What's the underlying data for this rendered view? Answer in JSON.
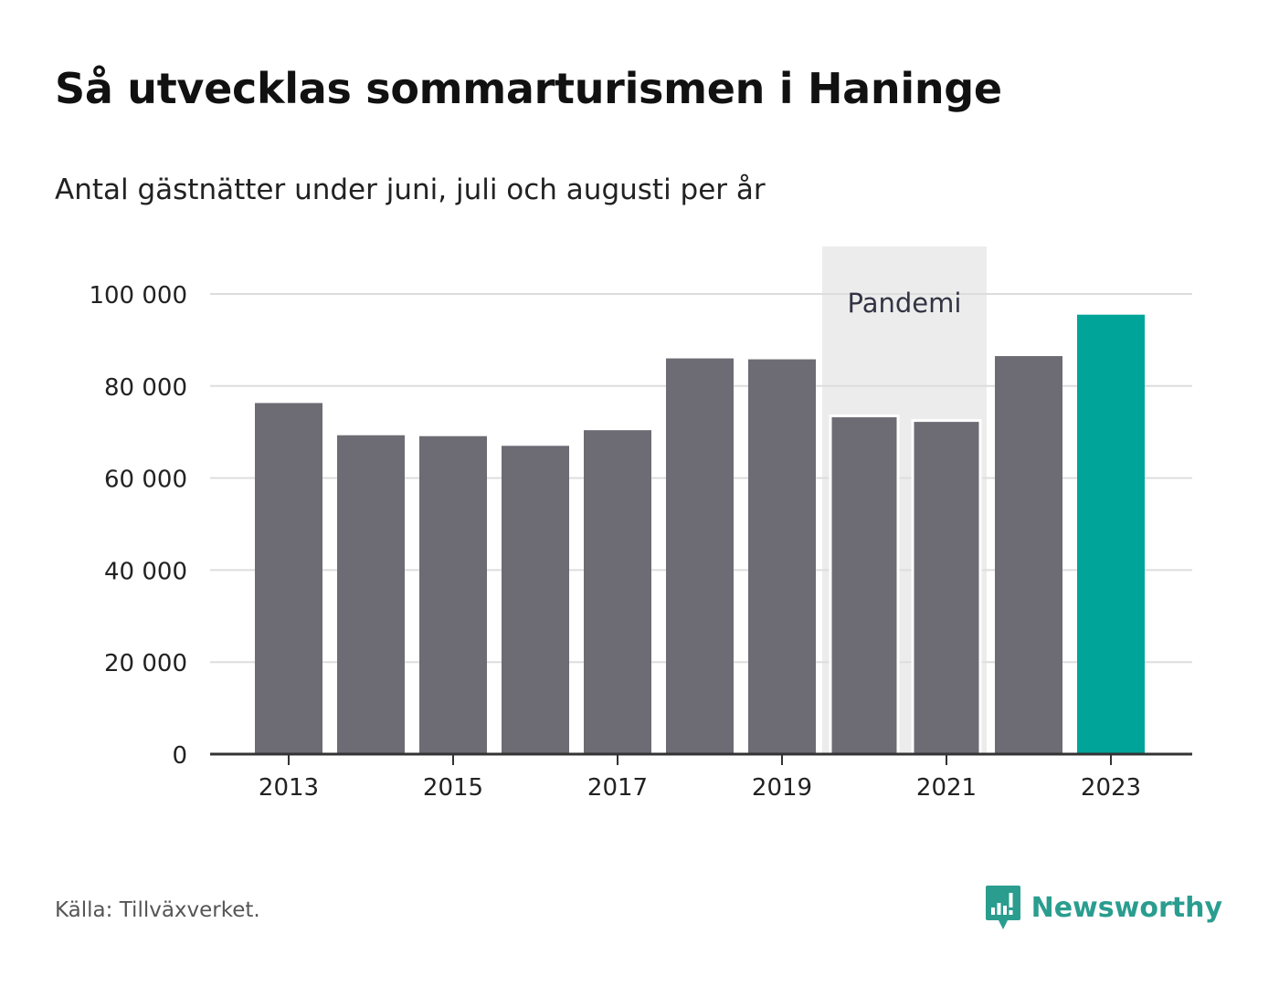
{
  "header": {
    "title": "Så utvecklas sommarturismen i Haninge",
    "subtitle": "Antal gästnätter under juni, juli och augusti per år"
  },
  "footer": {
    "source": "Källa: Tillväxverket.",
    "brand": "Newsworthy"
  },
  "colors": {
    "bar": "#6d6c74",
    "highlight": "#00a499",
    "shade": "#ececec",
    "grid": "#dddddd",
    "axis": "#333333",
    "brand": "#2a9d8f"
  },
  "chart_data": {
    "type": "bar",
    "categories": [
      "2013",
      "2014",
      "2015",
      "2016",
      "2017",
      "2018",
      "2019",
      "2020",
      "2021",
      "2022",
      "2023"
    ],
    "values": [
      76300,
      69300,
      69100,
      67000,
      70400,
      86000,
      85800,
      73500,
      72500,
      86500,
      95500
    ],
    "highlight_category": "2023",
    "x_tick_labels": [
      "2013",
      "2015",
      "2017",
      "2019",
      "2021",
      "2023"
    ],
    "y_ticks": [
      0,
      20000,
      40000,
      60000,
      80000,
      100000
    ],
    "y_tick_labels": [
      "0",
      "20 000",
      "40 000",
      "60 000",
      "80 000",
      "100 000"
    ],
    "ylim": [
      0,
      100000
    ],
    "grid": true,
    "annotation": {
      "label": "Pandemi",
      "from": "2020",
      "to": "2021"
    }
  }
}
